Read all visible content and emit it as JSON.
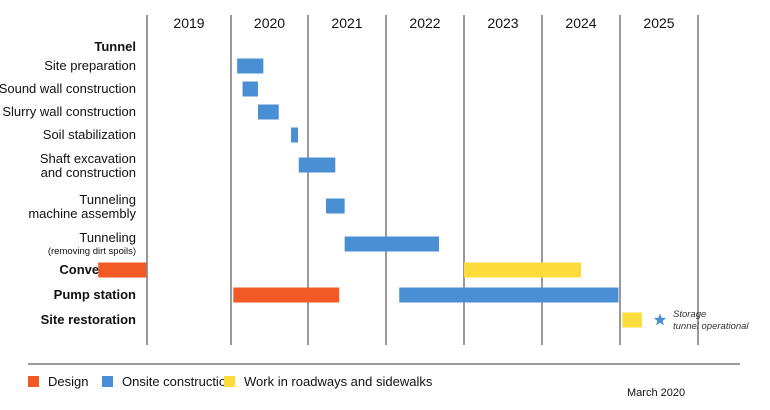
{
  "chart_data": {
    "type": "gantt",
    "title": "",
    "colors": {
      "Design": "#f15a24",
      "Onsite construction": "#4a8fd4",
      "Work in roadways and sidewalks": "#fcdc3a",
      "gridline": "#333333"
    },
    "years": [
      "2019",
      "2020",
      "2021",
      "2022",
      "2023",
      "2024",
      "2025"
    ],
    "year_range": [
      2019,
      2026
    ],
    "rows": [
      {
        "id": "tunnel",
        "label": "Tunnel",
        "bold": true,
        "bars": []
      },
      {
        "id": "site-preparation",
        "label": "Site preparation",
        "bars": [
          {
            "category": "Onsite construction",
            "start": 2020.08,
            "end": 2020.42
          }
        ]
      },
      {
        "id": "sound-wall",
        "label": "Sound wall construction",
        "bars": [
          {
            "category": "Onsite construction",
            "start": 2020.15,
            "end": 2020.35
          }
        ]
      },
      {
        "id": "slurry-wall",
        "label": "Slurry wall construction",
        "bars": [
          {
            "category": "Onsite construction",
            "start": 2020.35,
            "end": 2020.62
          }
        ]
      },
      {
        "id": "soil-stabilization",
        "label": "Soil stabilization",
        "bars": [
          {
            "category": "Onsite construction",
            "start": 2020.78,
            "end": 2020.87
          }
        ]
      },
      {
        "id": "shaft-excavation",
        "label": "Shaft excavation",
        "label2": "and construction",
        "bars": [
          {
            "category": "Onsite construction",
            "start": 2020.88,
            "end": 2021.35
          }
        ]
      },
      {
        "id": "tunneling-machine",
        "label": "Tunneling",
        "label2": "machine assembly",
        "bars": [
          {
            "category": "Onsite construction",
            "start": 2021.23,
            "end": 2021.47
          }
        ]
      },
      {
        "id": "tunneling",
        "label": "Tunneling",
        "label2": "(removing dirt spoils)",
        "label2_small": true,
        "bars": [
          {
            "category": "Onsite construction",
            "start": 2021.47,
            "end": 2022.68
          }
        ]
      },
      {
        "id": "conveyance",
        "label": "Conveyance",
        "bold": true,
        "bars": [
          {
            "category": "Design",
            "start": 2018.42,
            "end": 2018.99
          },
          {
            "category": "Work in roadways and sidewalks",
            "start": 2023.0,
            "end": 2024.5
          }
        ]
      },
      {
        "id": "pump-station",
        "label": "Pump station",
        "bold": true,
        "bars": [
          {
            "category": "Design",
            "start": 2020.03,
            "end": 2021.4
          },
          {
            "category": "Onsite construction",
            "start": 2022.17,
            "end": 2024.98
          }
        ]
      },
      {
        "id": "site-restoration",
        "label": "Site restoration",
        "bold": true,
        "bars": [
          {
            "category": "Work in roadways and sidewalks",
            "start": 2025.03,
            "end": 2025.28
          }
        ]
      }
    ],
    "milestone": {
      "label_line1": "Storage",
      "label_line2": "tunnel operational",
      "date": 2025.5
    },
    "legend": [
      {
        "label": "Design",
        "color": "#f15a24"
      },
      {
        "label": "Onsite construction",
        "color": "#4a8fd4"
      },
      {
        "label": "Work in roadways and sidewalks",
        "color": "#fcdc3a"
      }
    ],
    "legend_position": "bottom-left"
  },
  "footer": {
    "date_note": "March 2020"
  }
}
